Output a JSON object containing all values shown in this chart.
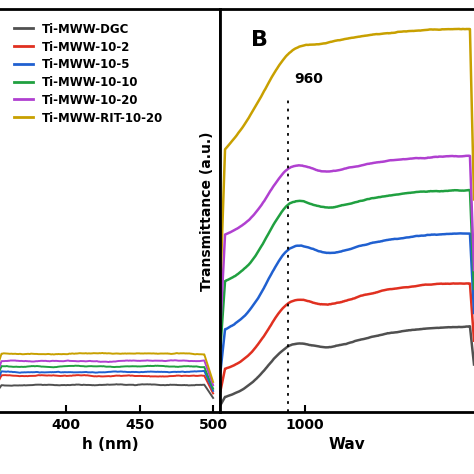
{
  "legend_labels": [
    "Ti-MWW-DGC",
    "Ti-MWW-10-2",
    "Ti-MWW-10-5",
    "Ti-MWW-10-10",
    "Ti-MWW-10-20",
    "Ti-MWW-RIT-10-20"
  ],
  "colors": [
    "#505050",
    "#e03020",
    "#2060d0",
    "#20a040",
    "#b040d0",
    "#c8a000"
  ],
  "panel_b_label": "B",
  "ylabel_b": "Transmittance (a.u.)",
  "xlabel_b": "Wav",
  "xlabel_a": "h (nm)",
  "annotation_960": "960",
  "background_color": "#ffffff"
}
